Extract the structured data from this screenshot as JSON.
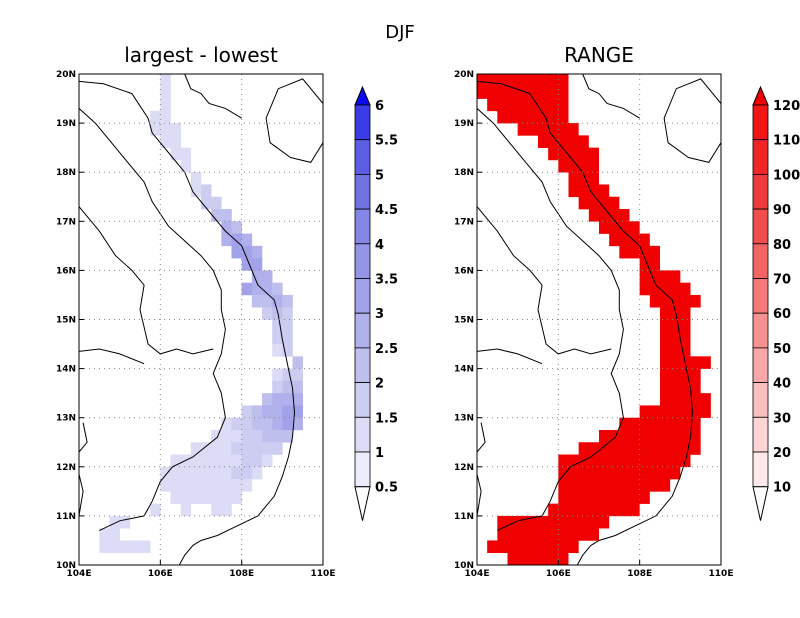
{
  "title": "DJF",
  "panels": [
    {
      "title": "largest - lowest",
      "colorbar": {
        "labels": [
          "0.5",
          "1",
          "1.5",
          "2",
          "2.5",
          "3",
          "3.5",
          "4",
          "4.5",
          "5",
          "5.5",
          "6"
        ],
        "colors": [
          "#ffffff",
          "#ececfa",
          "#dcdcf6",
          "#cdcdf2",
          "#bfbfee",
          "#b0b0ec",
          "#a2a2ea",
          "#9595e8",
          "#8585e6",
          "#7171e4",
          "#5c5ce4",
          "#3c3ce6",
          "#0a0af0"
        ],
        "extend": "both"
      }
    },
    {
      "title": "RANGE",
      "colorbar": {
        "labels": [
          "10",
          "20",
          "30",
          "40",
          "50",
          "60",
          "70",
          "80",
          "90",
          "100",
          "110",
          "120"
        ],
        "colors": [
          "#ffffff",
          "#fde9e9",
          "#fcd4d4",
          "#fac0c0",
          "#f8a8a8",
          "#f69191",
          "#f47a7a",
          "#f26464",
          "#f04d4d",
          "#ee3a3a",
          "#f02525",
          "#f01616",
          "#f00000"
        ],
        "extend": "both"
      }
    }
  ],
  "map": {
    "lon_ticks": [
      "104E",
      "106E",
      "108E",
      "110E"
    ],
    "lat_ticks": [
      "10N",
      "11N",
      "12N",
      "13N",
      "14N",
      "15N",
      "16N",
      "17N",
      "18N",
      "19N",
      "20N"
    ],
    "lon_range": [
      104,
      110
    ],
    "lat_range": [
      10,
      20
    ],
    "grid": "dotted"
  },
  "chart_data": [
    {
      "type": "heatmap",
      "title": "largest - lowest",
      "xlim": [
        104,
        110
      ],
      "ylim": [
        10,
        20
      ],
      "levels": [
        0.5,
        1,
        1.5,
        2,
        2.5,
        3,
        3.5,
        4,
        4.5,
        5,
        5.5,
        6
      ],
      "grid_spacing_deg": 0.25,
      "cells": [
        [
          106.0,
          19.75,
          1
        ],
        [
          106.0,
          19.5,
          1
        ],
        [
          106.0,
          19.25,
          1
        ],
        [
          105.75,
          19.0,
          1
        ],
        [
          106.0,
          19.0,
          1
        ],
        [
          105.75,
          18.75,
          1
        ],
        [
          106.0,
          18.75,
          1
        ],
        [
          106.25,
          18.75,
          1
        ],
        [
          106.0,
          18.5,
          1
        ],
        [
          106.25,
          18.5,
          1
        ],
        [
          106.25,
          18.25,
          1
        ],
        [
          106.5,
          18.25,
          1
        ],
        [
          106.5,
          18.0,
          1
        ],
        [
          106.75,
          17.75,
          1
        ],
        [
          106.75,
          17.5,
          1
        ],
        [
          107.0,
          17.5,
          1.5
        ],
        [
          107.0,
          17.25,
          1.5
        ],
        [
          107.25,
          17.25,
          1.5
        ],
        [
          107.25,
          17.0,
          2
        ],
        [
          107.5,
          17.0,
          2
        ],
        [
          107.5,
          16.75,
          2.5
        ],
        [
          107.75,
          16.75,
          2
        ],
        [
          107.5,
          16.5,
          2.5
        ],
        [
          107.75,
          16.5,
          3
        ],
        [
          108.0,
          16.5,
          2.5
        ],
        [
          107.75,
          16.25,
          3
        ],
        [
          108.0,
          16.25,
          3
        ],
        [
          108.25,
          16.25,
          2.5
        ],
        [
          108.0,
          16.0,
          3
        ],
        [
          108.25,
          16.0,
          3
        ],
        [
          108.25,
          15.75,
          2.5
        ],
        [
          108.5,
          15.75,
          2.5
        ],
        [
          108.0,
          15.5,
          3
        ],
        [
          108.25,
          15.5,
          2.5
        ],
        [
          108.5,
          15.5,
          2.5
        ],
        [
          108.75,
          15.5,
          2
        ],
        [
          108.25,
          15.25,
          2
        ],
        [
          108.5,
          15.25,
          2
        ],
        [
          108.75,
          15.25,
          2.5
        ],
        [
          109.0,
          15.25,
          2
        ],
        [
          108.5,
          15.0,
          1.5
        ],
        [
          108.75,
          15.0,
          2
        ],
        [
          109.0,
          15.0,
          1.5
        ],
        [
          108.75,
          14.75,
          1.5
        ],
        [
          109.0,
          14.75,
          1.5
        ],
        [
          108.75,
          14.5,
          1.5
        ],
        [
          109.0,
          14.5,
          1.5
        ],
        [
          108.75,
          14.25,
          1
        ],
        [
          109.0,
          14.25,
          1.5
        ],
        [
          109.25,
          14.0,
          2
        ],
        [
          108.75,
          13.75,
          1
        ],
        [
          109.0,
          13.75,
          1.5
        ],
        [
          109.25,
          13.75,
          1.5
        ],
        [
          108.75,
          13.5,
          1.5
        ],
        [
          109.0,
          13.5,
          2
        ],
        [
          109.25,
          13.5,
          2
        ],
        [
          108.5,
          13.25,
          2
        ],
        [
          108.75,
          13.25,
          2.5
        ],
        [
          109.0,
          13.25,
          2.5
        ],
        [
          109.25,
          13.25,
          2.5
        ],
        [
          108.0,
          13.0,
          1.5
        ],
        [
          108.25,
          13.0,
          2
        ],
        [
          108.5,
          13.0,
          2.5
        ],
        [
          108.75,
          13.0,
          2.5
        ],
        [
          109.0,
          13.0,
          3
        ],
        [
          109.25,
          13.0,
          3
        ],
        [
          107.5,
          12.75,
          1
        ],
        [
          107.75,
          12.75,
          1.5
        ],
        [
          108.0,
          12.75,
          1.5
        ],
        [
          108.25,
          12.75,
          2
        ],
        [
          108.5,
          12.75,
          2
        ],
        [
          108.75,
          12.75,
          2.5
        ],
        [
          109.0,
          12.75,
          3
        ],
        [
          109.25,
          12.75,
          2.5
        ],
        [
          107.25,
          12.5,
          1
        ],
        [
          107.5,
          12.5,
          1
        ],
        [
          107.75,
          12.5,
          1
        ],
        [
          108.0,
          12.5,
          1.5
        ],
        [
          108.25,
          12.5,
          1.5
        ],
        [
          108.5,
          12.5,
          2
        ],
        [
          108.75,
          12.5,
          2
        ],
        [
          109.0,
          12.5,
          2
        ],
        [
          106.75,
          12.25,
          1
        ],
        [
          107.0,
          12.25,
          1
        ],
        [
          107.25,
          12.25,
          1
        ],
        [
          107.5,
          12.25,
          1
        ],
        [
          107.75,
          12.25,
          1.5
        ],
        [
          108.0,
          12.25,
          1.5
        ],
        [
          108.25,
          12.25,
          1.5
        ],
        [
          108.5,
          12.25,
          1.5
        ],
        [
          108.75,
          12.25,
          1.5
        ],
        [
          106.25,
          12.0,
          1
        ],
        [
          106.5,
          12.0,
          1
        ],
        [
          106.75,
          12.0,
          1
        ],
        [
          107.0,
          12.0,
          1
        ],
        [
          107.25,
          12.0,
          1
        ],
        [
          107.5,
          12.0,
          1
        ],
        [
          107.75,
          12.0,
          1
        ],
        [
          108.0,
          12.0,
          1.5
        ],
        [
          108.25,
          12.0,
          1.5
        ],
        [
          108.5,
          12.0,
          1
        ],
        [
          106.0,
          11.75,
          1
        ],
        [
          106.25,
          11.75,
          1
        ],
        [
          106.5,
          11.75,
          1
        ],
        [
          106.75,
          11.75,
          1
        ],
        [
          107.0,
          11.75,
          1
        ],
        [
          107.25,
          11.75,
          1
        ],
        [
          107.5,
          11.75,
          1
        ],
        [
          107.75,
          11.75,
          1.5
        ],
        [
          108.0,
          11.75,
          1.5
        ],
        [
          108.25,
          11.75,
          1
        ],
        [
          106.0,
          11.5,
          1
        ],
        [
          106.25,
          11.5,
          1
        ],
        [
          106.5,
          11.5,
          1
        ],
        [
          106.75,
          11.5,
          1
        ],
        [
          107.0,
          11.5,
          1
        ],
        [
          107.25,
          11.5,
          1
        ],
        [
          107.5,
          11.5,
          1
        ],
        [
          107.75,
          11.5,
          1
        ],
        [
          108.0,
          11.5,
          1
        ],
        [
          106.25,
          11.25,
          1
        ],
        [
          106.5,
          11.25,
          1
        ],
        [
          106.75,
          11.25,
          1
        ],
        [
          107.0,
          11.25,
          1
        ],
        [
          107.25,
          11.25,
          1
        ],
        [
          107.5,
          11.25,
          1
        ],
        [
          107.75,
          11.25,
          1
        ],
        [
          106.5,
          11.0,
          1
        ],
        [
          107.25,
          11.0,
          1
        ],
        [
          107.5,
          11.0,
          1
        ],
        [
          105.75,
          11.0,
          1
        ],
        [
          104.75,
          10.75,
          1
        ],
        [
          105.0,
          10.75,
          1
        ],
        [
          104.5,
          10.5,
          1
        ],
        [
          104.75,
          10.5,
          1
        ],
        [
          104.75,
          10.25,
          1
        ],
        [
          105.0,
          10.25,
          1
        ],
        [
          105.25,
          10.25,
          1
        ],
        [
          105.5,
          10.25,
          1
        ],
        [
          104.5,
          10.25,
          1
        ]
      ]
    },
    {
      "type": "heatmap",
      "title": "RANGE",
      "xlim": [
        104,
        110
      ],
      "ylim": [
        10,
        20
      ],
      "levels": [
        10,
        20,
        30,
        40,
        50,
        60,
        70,
        80,
        90,
        100,
        110,
        120
      ],
      "grid_spacing_deg": 0.25,
      "note_value": 120,
      "cells_by_row": [
        [
          19.75,
          104.0,
          106.0
        ],
        [
          19.5,
          104.0,
          106.0
        ],
        [
          19.25,
          104.25,
          106.0
        ],
        [
          19.0,
          104.5,
          106.0
        ],
        [
          18.75,
          105.0,
          106.25
        ],
        [
          18.5,
          105.5,
          106.5
        ],
        [
          18.25,
          105.75,
          106.75
        ],
        [
          18.0,
          106.0,
          106.75
        ],
        [
          17.75,
          106.25,
          106.75
        ],
        [
          17.5,
          106.25,
          107.0
        ],
        [
          17.25,
          106.5,
          107.25
        ],
        [
          17.0,
          106.75,
          107.5
        ],
        [
          16.75,
          107.0,
          107.75
        ],
        [
          16.5,
          107.25,
          108.0
        ],
        [
          16.25,
          107.5,
          108.25
        ],
        [
          16.0,
          108.0,
          108.25
        ],
        [
          15.75,
          108.0,
          108.75
        ],
        [
          15.5,
          108.0,
          109.0
        ],
        [
          15.25,
          108.25,
          109.25
        ],
        [
          15.0,
          108.5,
          109.0
        ],
        [
          14.75,
          108.5,
          109.0
        ],
        [
          14.5,
          108.5,
          109.0
        ],
        [
          14.25,
          108.5,
          109.0
        ],
        [
          14.0,
          108.5,
          109.5
        ],
        [
          13.75,
          108.5,
          109.25
        ],
        [
          13.5,
          108.5,
          109.25
        ],
        [
          13.25,
          108.5,
          109.5
        ],
        [
          13.0,
          108.0,
          109.5
        ],
        [
          12.75,
          107.5,
          109.25
        ],
        [
          12.5,
          107.0,
          109.25
        ],
        [
          12.25,
          106.5,
          109.25
        ],
        [
          12.0,
          106.0,
          109.0
        ],
        [
          11.75,
          106.0,
          108.75
        ],
        [
          11.5,
          106.0,
          108.5
        ],
        [
          11.25,
          106.0,
          108.0
        ],
        [
          11.0,
          105.75,
          107.75
        ],
        [
          10.75,
          104.5,
          107.0
        ],
        [
          10.5,
          104.5,
          106.75
        ],
        [
          10.25,
          104.25,
          106.25
        ],
        [
          10.0,
          104.75,
          106.0
        ]
      ]
    }
  ]
}
